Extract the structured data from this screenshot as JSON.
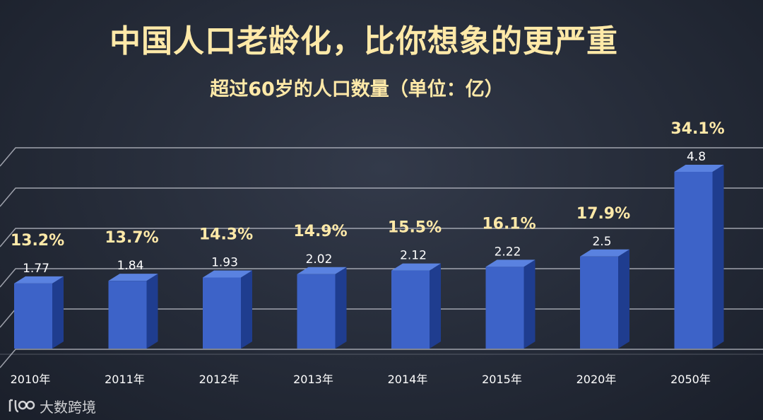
{
  "chart_data": {
    "type": "bar",
    "title": "中国人口老龄化，比你想象的更严重",
    "subtitle": "超过60岁的人口数量（单位：亿）",
    "categories": [
      "2010年",
      "2011年",
      "2012年",
      "2013年",
      "2014年",
      "2015年",
      "2020年",
      "2050年"
    ],
    "values": [
      1.77,
      1.84,
      1.93,
      2.02,
      2.12,
      2.22,
      2.5,
      4.8
    ],
    "value_labels": [
      "1.77",
      "1.84",
      "1.93",
      "2.02",
      "2.12",
      "2.22",
      "2.5",
      "4.8"
    ],
    "percent_labels": [
      "13.2%",
      "13.7%",
      "14.3%",
      "14.9%",
      "15.5%",
      "16.1%",
      "17.9%",
      "34.1%"
    ],
    "ylim": [
      0,
      5
    ],
    "grid": true,
    "xlabel": "",
    "ylabel": ""
  },
  "colors": {
    "bar_front": "#3d63c8",
    "bar_side": "#1f3d8f",
    "bar_top": "#5a82e0",
    "percent_text": "#ffe9a8",
    "grid": "#c9ccd6"
  },
  "watermark": {
    "icon": "logo-icon",
    "text": "大数跨境"
  }
}
